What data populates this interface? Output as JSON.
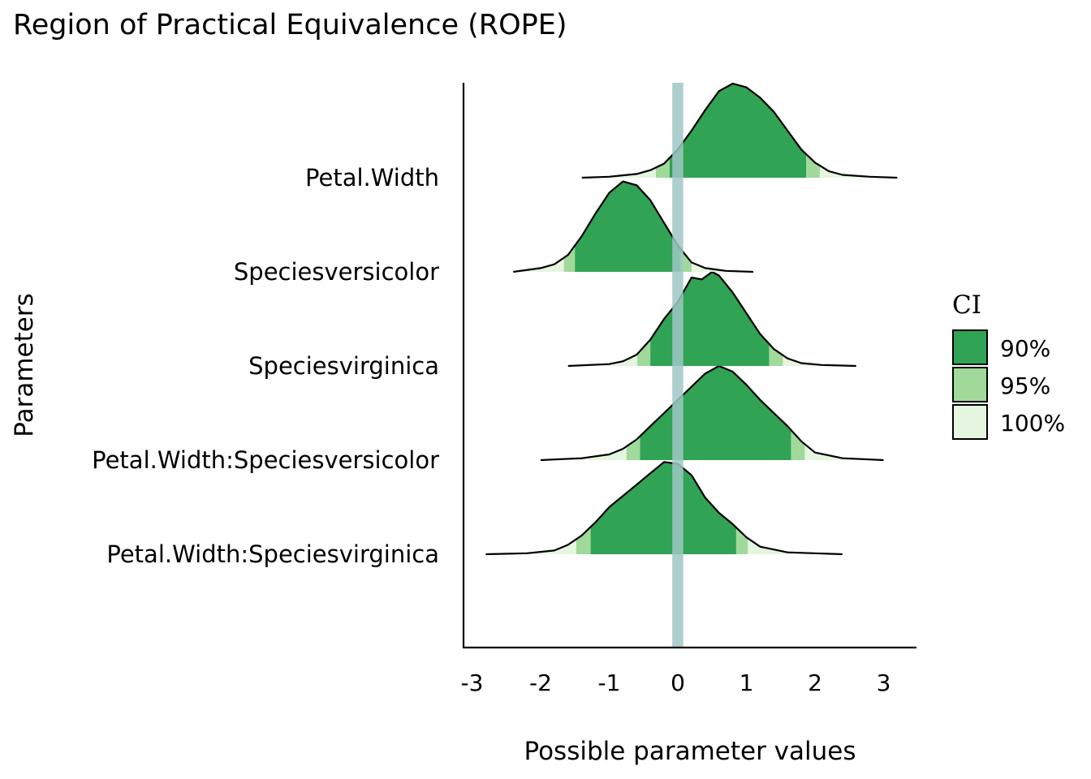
{
  "chart_data": {
    "type": "ridgeline",
    "title": "Region of Practical Equivalence (ROPE)",
    "xlabel": "Possible parameter values",
    "ylabel": "Parameters",
    "xlim": [
      -3.1,
      3.45
    ],
    "x_ticks": [
      -3,
      -2,
      -1,
      0,
      1,
      2,
      3
    ],
    "x_tick_labels": [
      "-3",
      "-2",
      "-1",
      "0",
      "1",
      "2",
      "3"
    ],
    "rope": [
      -0.08,
      0.08
    ],
    "rope_color": "#9fc8c6",
    "legend": {
      "title": "CI",
      "position": "right",
      "entries": [
        {
          "label": "90%",
          "color": "#31a354"
        },
        {
          "label": "95%",
          "color": "#a1d99b"
        },
        {
          "label": "100%",
          "color": "#e5f5e0"
        }
      ]
    },
    "parameters": [
      {
        "name": "Petal.Width",
        "x": [
          -1.4,
          -1.0,
          -0.6,
          -0.4,
          -0.2,
          0.0,
          0.2,
          0.4,
          0.6,
          0.8,
          1.0,
          1.2,
          1.4,
          1.6,
          1.8,
          2.0,
          2.2,
          2.4,
          2.8,
          3.2
        ],
        "density": [
          0.0,
          0.01,
          0.04,
          0.08,
          0.15,
          0.3,
          0.5,
          0.72,
          0.92,
          1.0,
          0.96,
          0.85,
          0.7,
          0.5,
          0.3,
          0.16,
          0.07,
          0.03,
          0.01,
          0.0
        ],
        "ci90": [
          -0.12,
          1.87
        ],
        "ci95": [
          -0.32,
          2.07
        ]
      },
      {
        "name": "Speciesversicolor",
        "x": [
          -2.4,
          -2.0,
          -1.8,
          -1.6,
          -1.4,
          -1.2,
          -1.0,
          -0.8,
          -0.6,
          -0.4,
          -0.2,
          0.0,
          0.2,
          0.4,
          0.7,
          1.1
        ],
        "density": [
          0.0,
          0.04,
          0.08,
          0.18,
          0.38,
          0.62,
          0.84,
          0.96,
          0.92,
          0.76,
          0.52,
          0.28,
          0.1,
          0.04,
          0.01,
          0.0
        ],
        "ci90": [
          -1.5,
          0.04
        ],
        "ci95": [
          -1.66,
          0.2
        ]
      },
      {
        "name": "Speciesvirginica",
        "x": [
          -1.6,
          -1.0,
          -0.8,
          -0.6,
          -0.4,
          -0.2,
          0.0,
          0.2,
          0.35,
          0.5,
          0.6,
          0.8,
          1.0,
          1.2,
          1.4,
          1.6,
          1.8,
          2.1,
          2.6
        ],
        "density": [
          0.0,
          0.02,
          0.05,
          0.12,
          0.28,
          0.5,
          0.68,
          0.94,
          0.92,
          1.0,
          0.96,
          0.78,
          0.56,
          0.34,
          0.18,
          0.08,
          0.03,
          0.01,
          0.0
        ],
        "ci90": [
          -0.4,
          1.33
        ],
        "ci95": [
          -0.59,
          1.53
        ]
      },
      {
        "name": "Petal.Width:Speciesversicolor",
        "x": [
          -2.0,
          -1.4,
          -1.0,
          -0.8,
          -0.6,
          -0.4,
          -0.2,
          0.0,
          0.2,
          0.4,
          0.6,
          0.8,
          1.0,
          1.2,
          1.4,
          1.6,
          1.8,
          2.0,
          2.4,
          3.0
        ],
        "density": [
          0.0,
          0.02,
          0.06,
          0.12,
          0.22,
          0.36,
          0.5,
          0.64,
          0.78,
          0.92,
          1.0,
          0.94,
          0.8,
          0.64,
          0.5,
          0.36,
          0.2,
          0.08,
          0.02,
          0.0
        ],
        "ci90": [
          -0.55,
          1.65
        ],
        "ci95": [
          -0.75,
          1.85
        ]
      },
      {
        "name": "Petal.Width:Speciesvirginica",
        "x": [
          -2.8,
          -2.2,
          -1.8,
          -1.6,
          -1.4,
          -1.2,
          -1.0,
          -0.8,
          -0.6,
          -0.4,
          -0.2,
          0.0,
          0.2,
          0.4,
          0.6,
          0.8,
          1.0,
          1.2,
          1.6,
          2.4
        ],
        "density": [
          0.0,
          0.01,
          0.04,
          0.1,
          0.2,
          0.34,
          0.5,
          0.62,
          0.74,
          0.86,
          0.98,
          0.96,
          0.84,
          0.6,
          0.44,
          0.32,
          0.18,
          0.08,
          0.02,
          0.0
        ],
        "ci90": [
          -1.27,
          0.85
        ],
        "ci95": [
          -1.48,
          1.02
        ]
      }
    ]
  }
}
